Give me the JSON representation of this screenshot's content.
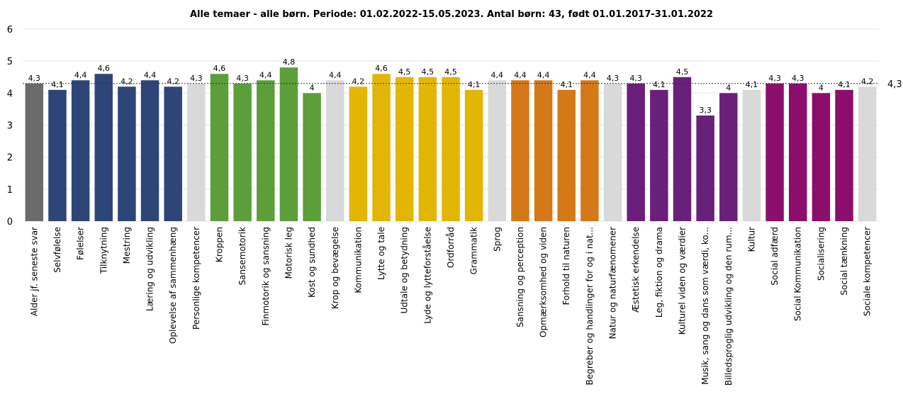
{
  "chart_data": {
    "type": "bar",
    "title": "Alle temaer - alle børn. Periode: 01.02.2022-15.05.2023. Antal børn: 43, født 01.01.2017-31.01.2022",
    "ylim": [
      0,
      6
    ],
    "yticks": [
      "0",
      "1",
      "2",
      "3",
      "4",
      "5",
      "6"
    ],
    "grid": true,
    "reference_line": {
      "value": 4.3,
      "label": "4,3"
    },
    "categories": [
      "Alder jf. seneste svar",
      "Selvfølelse",
      "Følelser",
      "Tilknytning",
      "Mestring",
      "Læring og udvikling",
      "Oplevelse af sammenhæng",
      "Personlige kompetencer",
      "Kroppen",
      "Sansemotorik",
      "Finmotorik og sansning",
      "Motorisk leg",
      "Kost og sundhed",
      "Krop og bevægelse",
      "Kommunikation",
      "Lytte og tale",
      "Udtale og betydning",
      "Lyde og lytteforståelse",
      "Ordforråd",
      "Grammatik",
      "Sprog",
      "Sansning og perception",
      "Opmærksomhed og viden",
      "Forhold til naturen",
      "Begreber og handlinger for og i nat...",
      "Natur og naturfænomener",
      "Æstetisk erkendelse",
      "Leg, fiktion og drama",
      "Kulturel viden og værdier",
      "Musik, sang og dans som værdi, ko...",
      "Billedsproglig udvikling og den rum...",
      "Kultur",
      "Social adfærd",
      "Social Kommunikation",
      "Socialisering",
      "Social tænkning",
      "Sociale kompetencer"
    ],
    "values": [
      4.3,
      4.1,
      4.4,
      4.6,
      4.2,
      4.4,
      4.2,
      4.3,
      4.6,
      4.3,
      4.4,
      4.8,
      4.0,
      4.4,
      4.2,
      4.6,
      4.5,
      4.5,
      4.5,
      4.1,
      4.4,
      4.4,
      4.4,
      4.1,
      4.4,
      4.3,
      4.3,
      4.1,
      4.5,
      3.3,
      4.0,
      4.1,
      4.3,
      4.3,
      4.0,
      4.1,
      4.2
    ],
    "value_labels": [
      "4,3",
      "4,1",
      "4,4",
      "4,6",
      "4,2",
      "4,4",
      "4,2",
      "4,3",
      "4,6",
      "4,3",
      "4,4",
      "4,8",
      "4",
      "4,4",
      "4,2",
      "4,6",
      "4,5",
      "4,5",
      "4,5",
      "4,1",
      "4,4",
      "4,4",
      "4,4",
      "4,1",
      "4,4",
      "4,3",
      "4,3",
      "4,1",
      "4,5",
      "3,3",
      "4",
      "4,1",
      "4,3",
      "4,3",
      "4",
      "4,1",
      "4,2"
    ],
    "colors": [
      "#6b6b6b",
      "#2e4577",
      "#2e4577",
      "#2e4577",
      "#2e4577",
      "#2e4577",
      "#2e4577",
      "#d9d9d9",
      "#5b9e3a",
      "#5b9e3a",
      "#5b9e3a",
      "#5b9e3a",
      "#5b9e3a",
      "#d9d9d9",
      "#e3b505",
      "#e3b505",
      "#e3b505",
      "#e3b505",
      "#e3b505",
      "#e3b505",
      "#d9d9d9",
      "#d47818",
      "#d47818",
      "#d47818",
      "#d47818",
      "#d9d9d9",
      "#6a1f7a",
      "#6a1f7a",
      "#6a1f7a",
      "#6a1f7a",
      "#6a1f7a",
      "#d9d9d9",
      "#8b0e6c",
      "#8b0e6c",
      "#8b0e6c",
      "#8b0e6c",
      "#d9d9d9"
    ]
  }
}
